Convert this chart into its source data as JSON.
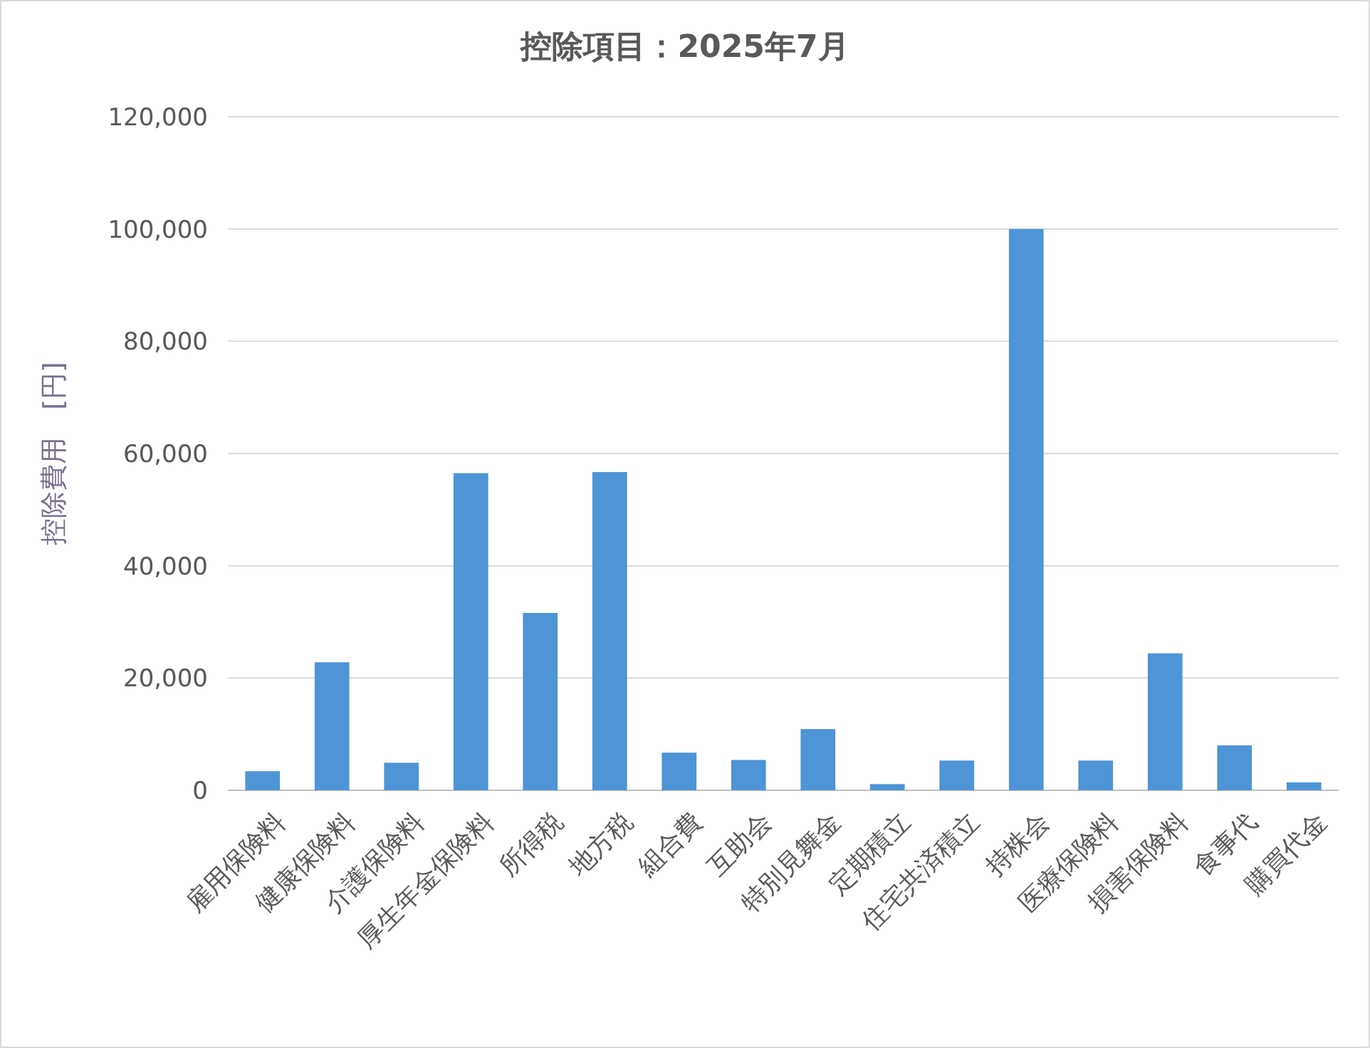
{
  "chart_data": {
    "type": "bar",
    "title": "控除項目：2025年7月",
    "ylabel": "控除費用　[円]",
    "categories": [
      "雇用保険料",
      "健康保険料",
      "介護保険料",
      "厚生年金保険料",
      "所得税",
      "地方税",
      "組合費",
      "互助会",
      "特別見舞金",
      "定期積立",
      "住宅共済積立",
      "持株会",
      "医療保険料",
      "損害保険料",
      "食事代",
      "購買代金"
    ],
    "values": [
      3400,
      22800,
      4900,
      56500,
      31600,
      56700,
      6700,
      5400,
      10900,
      1100,
      5300,
      100000,
      5300,
      24400,
      8000,
      1400
    ],
    "color": "#4f94d6",
    "ylim": [
      0,
      120000
    ],
    "yticks": [
      {
        "value": 0,
        "label": "0"
      },
      {
        "value": 20000,
        "label": "20,000"
      },
      {
        "value": 40000,
        "label": "40,000"
      },
      {
        "value": 60000,
        "label": "60,000"
      },
      {
        "value": 80000,
        "label": "80,000"
      },
      {
        "value": 100000,
        "label": "100,000"
      },
      {
        "value": 120000,
        "label": "120,000"
      }
    ],
    "grid": "y"
  }
}
